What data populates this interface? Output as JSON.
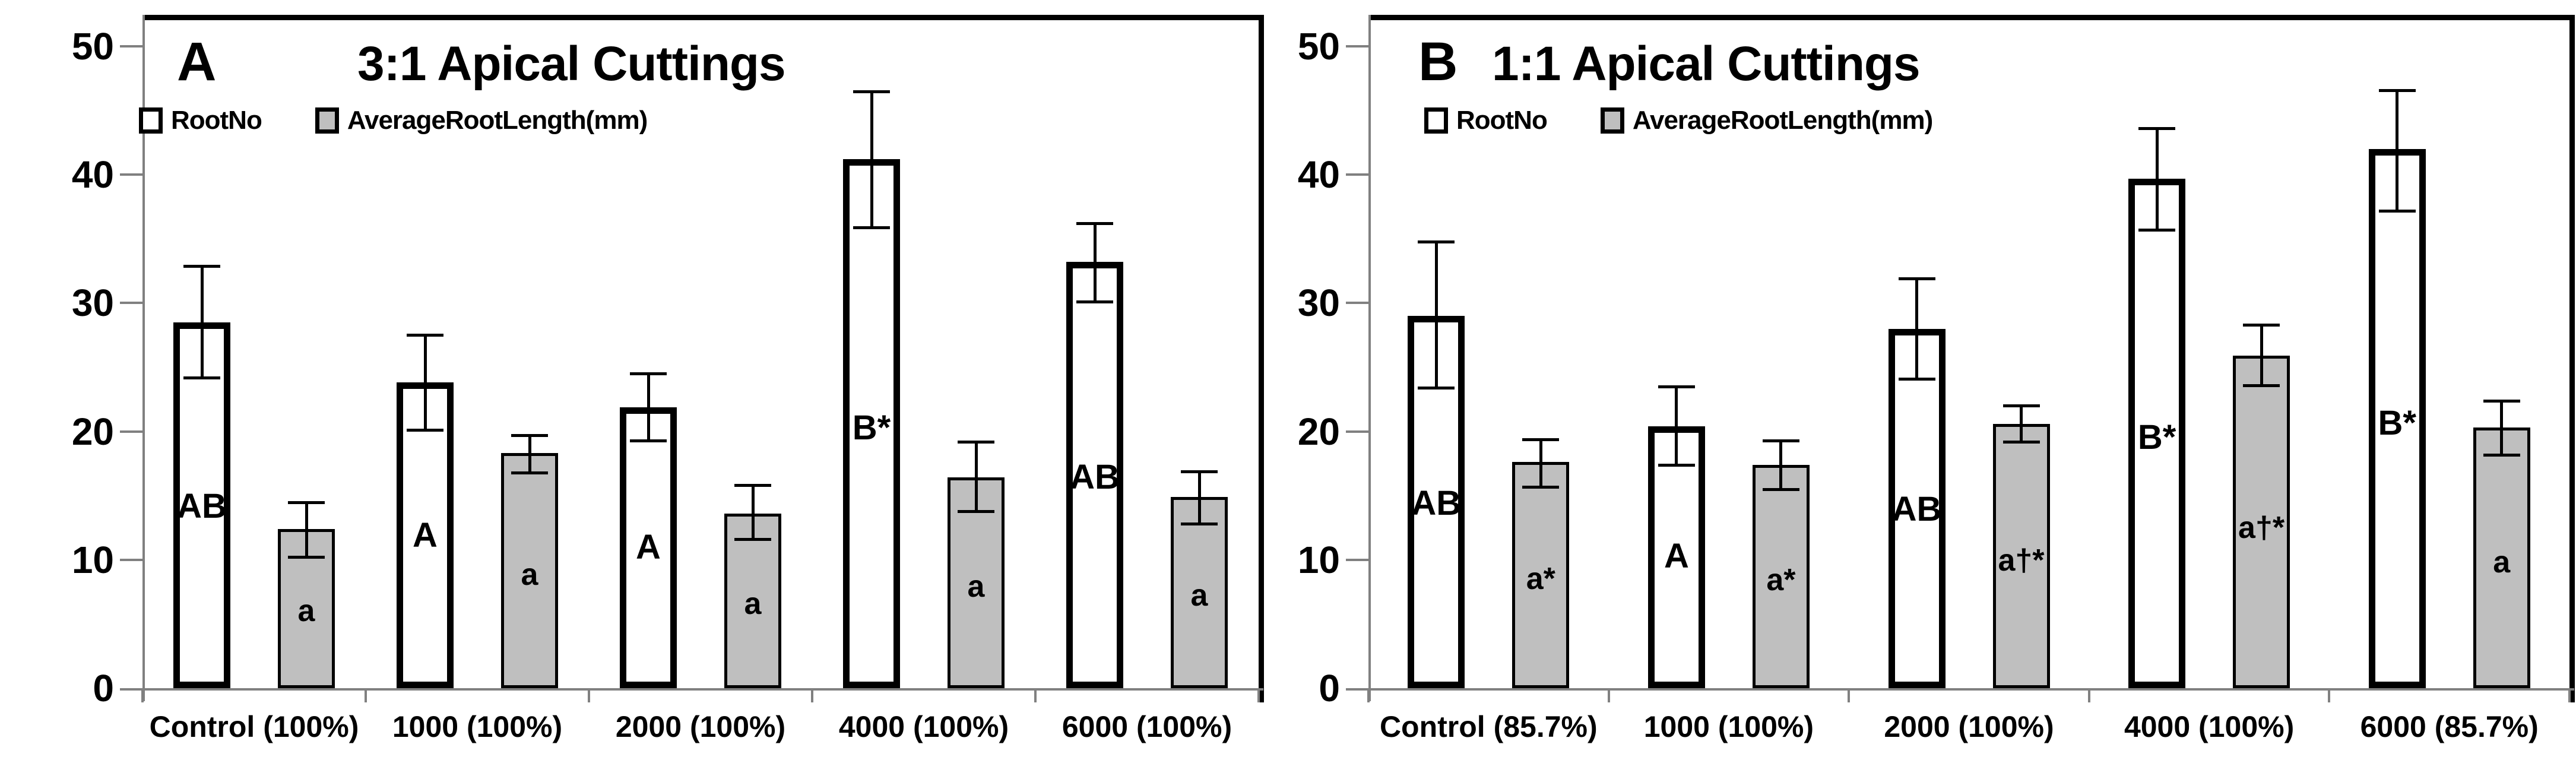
{
  "figure": {
    "background": "#ffffff",
    "colors": {
      "bar_outline": "#000000",
      "rootno_fill": "#FFFFFF",
      "rootlength_fill": "#BFBFBF",
      "axis_gray": "#808080",
      "text": "#000000"
    }
  },
  "chart_data": [
    {
      "type": "bar",
      "panel_label": "A",
      "title": "3:1 Apical Cuttings",
      "legend": [
        "RootNo",
        "AverageRootLength(mm)"
      ],
      "legend_position": "top-left",
      "grid": false,
      "ylim": [
        0,
        50
      ],
      "yticks": [
        0,
        10,
        20,
        30,
        40,
        50
      ],
      "categories": [
        "Control (100%)",
        "1000 (100%)",
        "2000 (100%)",
        "4000 (100%)",
        "6000 (100%)"
      ],
      "series": [
        {
          "name": "RootNo",
          "fill": "#FFFFFF",
          "values": [
            28.5,
            23.8,
            21.9,
            41.2,
            33.2
          ],
          "err_low": [
            24.2,
            20.1,
            19.3,
            35.9,
            30.1
          ],
          "err_high": [
            32.9,
            27.5,
            24.5,
            46.5,
            36.2
          ],
          "labels": [
            "AB",
            "A",
            "A",
            "B*",
            "AB"
          ]
        },
        {
          "name": "AverageRootLength(mm)",
          "fill": "#BFBFBF",
          "values": [
            12.4,
            18.3,
            13.6,
            16.4,
            14.9
          ],
          "err_low": [
            10.2,
            16.8,
            11.6,
            13.8,
            12.8
          ],
          "err_high": [
            14.5,
            19.7,
            15.8,
            19.2,
            16.9
          ],
          "labels": [
            "a",
            "a",
            "a",
            "a",
            "a"
          ]
        }
      ]
    },
    {
      "type": "bar",
      "panel_label": "B",
      "title": "1:1 Apical Cuttings",
      "legend": [
        "RootNo",
        "AverageRootLength(mm)"
      ],
      "legend_position": "top-left",
      "grid": false,
      "ylim": [
        0,
        50
      ],
      "yticks": [
        0,
        10,
        20,
        30,
        40,
        50
      ],
      "categories": [
        "Control (85.7%)",
        "1000 (100%)",
        "2000 (100%)",
        "4000 (100%)",
        "6000 (85.7%)"
      ],
      "series": [
        {
          "name": "RootNo",
          "fill": "#FFFFFF",
          "values": [
            29.0,
            20.4,
            28.0,
            39.7,
            42.0
          ],
          "err_low": [
            23.4,
            17.4,
            24.1,
            35.7,
            37.2
          ],
          "err_high": [
            34.8,
            23.5,
            31.9,
            43.6,
            46.6
          ],
          "labels": [
            "AB",
            "A",
            "AB",
            "B*",
            "B*"
          ]
        },
        {
          "name": "AverageRootLength(mm)",
          "fill": "#BFBFBF",
          "values": [
            17.6,
            17.4,
            20.6,
            25.9,
            20.3
          ],
          "err_low": [
            15.7,
            15.5,
            19.2,
            23.6,
            18.2
          ],
          "err_high": [
            19.4,
            19.3,
            22.0,
            28.3,
            22.4
          ],
          "labels": [
            "a*",
            "a*",
            "a†*",
            "a†*",
            "a"
          ]
        }
      ]
    }
  ]
}
